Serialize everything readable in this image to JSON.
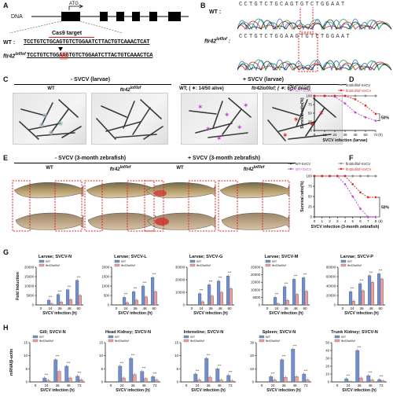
{
  "panelA": {
    "label": "A",
    "dna_label": "DNA",
    "atg_label": "ATG",
    "target_label": "Cas9 target",
    "wt_label": "WT :",
    "wt_seq": "TCCTGTCTGCAGTGTCTGGAATCTTACTGTCAAACTCAT",
    "mut_label": "ftr42",
    "mut_label_sup": "lof/lof",
    "mut_seq": "TCCTGTCTGGAAGTGTCTGGAATCTTACTGTCAAACTCA"
  },
  "panelB": {
    "label": "B",
    "wt_label": "WT :",
    "wt_bases": "CCTGTCTGCAGTGTCTGGAAT",
    "mut_label": "ftr42",
    "mut_label_sup": "lof/lof",
    "mut_bases": "CCTGTCTGGAAGTGTCTGGAAT"
  },
  "panelC": {
    "label": "C",
    "minus_title": "- SVCV (larvae)",
    "plus_title": "+ SVCV (larvae)",
    "wt_label": "WT",
    "mut_label": "ftr42",
    "mut_sup": "lof/lof",
    "wt_note": "WT; ( ✶: 14/50 alive)",
    "mut_note": "ftr42lof/lof; ( ✶: 6/50 dead)"
  },
  "panelE": {
    "label": "E",
    "minus_title": "- SVCV (3-month zebrafish)",
    "plus_title": "+ SVCV (3-month zebrafish)",
    "wt_label": "WT",
    "mut_label": "ftr42",
    "mut_sup": "lof/lof"
  },
  "colors": {
    "wt": "#2d2d2d",
    "mut": "#8a8a8a",
    "wt_svcv": "#c040d0",
    "mut_svcv": "#e02020",
    "bar_wt": "#6f8fcf",
    "bar_mut": "#e8a0a0"
  },
  "chart_data": [
    {
      "panel": "D",
      "type": "line",
      "ylabel": "Survival ratio(%)",
      "xlabel": "SVCV infection (larvae)",
      "x_unit": "(h)",
      "x": [
        0,
        12,
        24,
        36,
        48,
        60,
        72
      ],
      "ylim": [
        0,
        100
      ],
      "yticks": [
        0,
        25,
        50,
        75,
        100
      ],
      "annotation": "50%",
      "series": [
        {
          "name": "WT-SVCV",
          "values": [
            100,
            100,
            100,
            100,
            100,
            100,
            100
          ]
        },
        {
          "name": "ftr42lof/lof-SVCV",
          "values": [
            100,
            100,
            100,
            100,
            100,
            100,
            100
          ]
        },
        {
          "name": "WT+SVCV",
          "values": [
            100,
            100,
            98,
            78,
            52,
            38,
            28
          ]
        },
        {
          "name": "ftr42lof/lof+SVCV",
          "values": [
            100,
            100,
            100,
            100,
            90,
            72,
            48
          ]
        }
      ]
    },
    {
      "panel": "F",
      "type": "line",
      "ylabel": "Survival ratio(%)",
      "xlabel": "SVCV infection (3-month zebrafish)",
      "x_unit": "(d)",
      "x": [
        0,
        1,
        2,
        3,
        4,
        5,
        6,
        7,
        8
      ],
      "ylim": [
        0,
        100
      ],
      "yticks": [
        0,
        25,
        50,
        75,
        100
      ],
      "annotation": "50%",
      "series": [
        {
          "name": "WT-SVCV",
          "values": [
            100,
            100,
            100,
            100,
            100,
            100,
            100,
            100,
            100
          ]
        },
        {
          "name": "ftr42lof/lof-SVCV",
          "values": [
            100,
            100,
            100,
            100,
            100,
            100,
            100,
            100,
            100
          ]
        },
        {
          "name": "WT+SVCV",
          "values": [
            100,
            100,
            100,
            100,
            80,
            50,
            20,
            0,
            0
          ]
        },
        {
          "name": "ftr42lof/lof+SVCV",
          "values": [
            100,
            100,
            100,
            100,
            100,
            80,
            60,
            48,
            48
          ]
        }
      ]
    },
    {
      "panel": "G",
      "type": "bar",
      "title": "Larvae; SVCV-N",
      "ylabel": "Fold Induction",
      "xlabel": "SVCV infection (h)",
      "categories": [
        "0",
        "24",
        "36",
        "48",
        "60"
      ],
      "ylim": [
        0,
        20000
      ],
      "yticks": [
        0,
        5000,
        10000,
        15000,
        20000
      ],
      "series": [
        {
          "name": "WT",
          "values": [
            0,
            2500,
            5500,
            8000,
            13000
          ]
        },
        {
          "name": "ftr42lof/lof",
          "values": [
            0,
            600,
            1500,
            2800,
            5000
          ]
        }
      ]
    },
    {
      "panel": "G",
      "type": "bar",
      "title": "Larvae; SVCV-L",
      "categories": [
        "0",
        "24",
        "36",
        "48",
        "60"
      ],
      "ylim": [
        0,
        2000
      ],
      "yticks": [
        0,
        500,
        1000,
        1500,
        2000
      ],
      "series": [
        {
          "name": "WT",
          "values": [
            0,
            400,
            700,
            1000,
            1450
          ]
        },
        {
          "name": "ftr42lof/lof",
          "values": [
            0,
            120,
            250,
            420,
            700
          ]
        }
      ]
    },
    {
      "panel": "G",
      "type": "bar",
      "title": "Larvae; SVCV-G",
      "categories": [
        "0",
        "24",
        "36",
        "48",
        "60"
      ],
      "ylim": [
        0,
        30000
      ],
      "yticks": [
        0,
        10000,
        20000,
        30000
      ],
      "series": [
        {
          "name": "WT",
          "values": [
            0,
            9000,
            16000,
            19000,
            23000
          ]
        },
        {
          "name": "ftr42lof/lof",
          "values": [
            0,
            2500,
            7000,
            10000,
            13000
          ]
        }
      ]
    },
    {
      "panel": "G",
      "type": "bar",
      "title": "Larvae; SVCV-M",
      "categories": [
        "0",
        "24",
        "36",
        "48",
        "60"
      ],
      "ylim": [
        0,
        25000
      ],
      "yticks": [
        0,
        5000,
        10000,
        15000,
        20000,
        25000
      ],
      "series": [
        {
          "name": "WT",
          "values": [
            0,
            5000,
            12000,
            17000,
            18000
          ]
        },
        {
          "name": "ftr42lof/lof",
          "values": [
            0,
            800,
            3000,
            7000,
            9000
          ]
        }
      ]
    },
    {
      "panel": "G",
      "type": "bar",
      "title": "Larvae; SVCV-P",
      "categories": [
        "0",
        "24",
        "36",
        "48",
        "60"
      ],
      "ylim": [
        0,
        80000
      ],
      "yticks": [
        0,
        20000,
        40000,
        60000,
        80000
      ],
      "series": [
        {
          "name": "WT",
          "values": [
            0,
            28000,
            45000,
            62000,
            66000
          ]
        },
        {
          "name": "ftr42lof/lof",
          "values": [
            0,
            8000,
            30000,
            48000,
            55000
          ]
        }
      ]
    },
    {
      "panel": "H",
      "type": "bar",
      "title": "Gill; SVCV-N",
      "ylabel": "mRNA/β-actin",
      "xlabel": "SVCV infection (h)",
      "categories": [
        "0",
        "24",
        "36",
        "48",
        "72"
      ],
      "ylim": [
        0,
        15
      ],
      "yticks": [
        0,
        5,
        10,
        15
      ],
      "series": [
        {
          "name": "WT",
          "values": [
            0.1,
            1.5,
            8.5,
            6,
            2.2
          ]
        },
        {
          "name": "ftr42lof/lof",
          "values": [
            0.1,
            0.6,
            4,
            1.5,
            0.8
          ]
        }
      ]
    },
    {
      "panel": "H",
      "type": "bar",
      "title": "Head Kidney; SVCV-N",
      "categories": [
        "0",
        "24",
        "36",
        "48",
        "72"
      ],
      "ylim": [
        0,
        15
      ],
      "yticks": [
        0,
        5,
        10,
        15
      ],
      "series": [
        {
          "name": "WT",
          "values": [
            0.1,
            6,
            9,
            4,
            2
          ]
        },
        {
          "name": "ftr42lof/lof",
          "values": [
            0.1,
            1.5,
            2.8,
            1.3,
            0.7
          ]
        }
      ]
    },
    {
      "panel": "H",
      "type": "bar",
      "title": "Intenstine; SVCV-N",
      "categories": [
        "0",
        "24",
        "36",
        "48",
        "72"
      ],
      "ylim": [
        0,
        15
      ],
      "yticks": [
        0,
        5,
        10,
        15
      ],
      "series": [
        {
          "name": "WT",
          "values": [
            0.1,
            3,
            9,
            5,
            2.5
          ]
        },
        {
          "name": "ftr42lof/lof",
          "values": [
            0.1,
            0.8,
            1.8,
            0.7,
            0.4
          ]
        }
      ]
    },
    {
      "panel": "H",
      "type": "bar",
      "title": "Spleen; SVCV-N",
      "categories": [
        "0",
        "24",
        "36",
        "48",
        "72"
      ],
      "ylim": [
        0,
        30
      ],
      "yticks": [
        0,
        10,
        20,
        30
      ],
      "series": [
        {
          "name": "WT",
          "values": [
            0.2,
            4,
            17,
            25,
            6
          ]
        },
        {
          "name": "ftr42lof/lof",
          "values": [
            0.2,
            1.5,
            3.5,
            4,
            1.5
          ]
        }
      ]
    },
    {
      "panel": "H",
      "type": "bar",
      "title": "Trunk Kidney; SVCV-N",
      "categories": [
        "0",
        "24",
        "36",
        "48",
        "72"
      ],
      "ylim": [
        0,
        50
      ],
      "yticks": [
        0,
        10,
        20,
        30,
        40,
        50
      ],
      "series": [
        {
          "name": "WT",
          "values": [
            0.2,
            4,
            40,
            8,
            3
          ]
        },
        {
          "name": "ftr42lof/lof",
          "values": [
            0.2,
            1,
            5,
            2.5,
            1.2
          ]
        }
      ]
    }
  ]
}
